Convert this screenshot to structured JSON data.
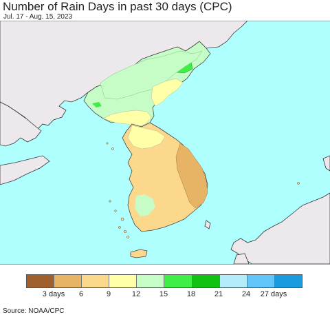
{
  "header": {
    "title": "Number of Rain Days in past 30 days (CPC)",
    "subtitle": "Jul. 17 - Aug. 15, 2023"
  },
  "legend": {
    "colors": [
      "#a0602e",
      "#e6b464",
      "#fcd88c",
      "#ffffa8",
      "#c6fcc6",
      "#40ee48",
      "#12c212",
      "#b4ecfa",
      "#64c6f8",
      "#1a9be0"
    ],
    "labels": [
      {
        "value": 3,
        "text": "3 days"
      },
      {
        "value": 6,
        "text": "6"
      },
      {
        "value": 9,
        "text": "9"
      },
      {
        "value": 12,
        "text": "12"
      },
      {
        "value": 15,
        "text": "15"
      },
      {
        "value": 18,
        "text": "18"
      },
      {
        "value": 21,
        "text": "21"
      },
      {
        "value": 24,
        "text": "24"
      },
      {
        "value": 27,
        "text": "27 days"
      }
    ]
  },
  "map": {
    "sea_color": "#afffff",
    "land_outside_color": "#ece8ec",
    "border_color": "#333333"
  },
  "footer": {
    "source": "Source: NOAA/CPC"
  }
}
